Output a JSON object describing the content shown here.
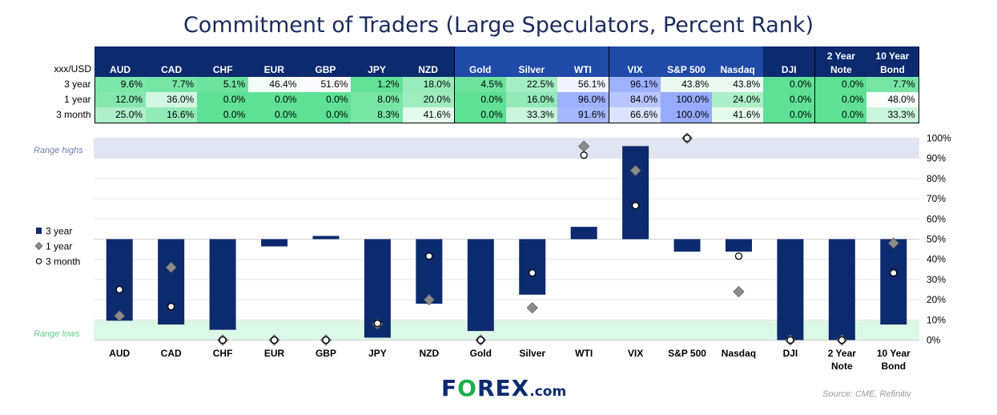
{
  "title": "Commitment of Traders (Large Speculators, Percent Rank)",
  "table": {
    "corner_label": "xxx/USD",
    "columns": [
      "AUD",
      "CAD",
      "CHF",
      "EUR",
      "GBP",
      "JPY",
      "NZD",
      "Gold",
      "Silver",
      "WTI",
      "VIX",
      "S&P 500",
      "Nasdaq",
      "DJI",
      "2 Year Note",
      "10 Year Bond"
    ],
    "rows": [
      {
        "label": "3 year",
        "values": [
          "9.6%",
          "7.7%",
          "5.1%",
          "46.4%",
          "51.6%",
          "1.2%",
          "18.0%",
          "4.5%",
          "22.5%",
          "56.1%",
          "96.1%",
          "43.8%",
          "43.8%",
          "0.0%",
          "0.0%",
          "7.7%"
        ]
      },
      {
        "label": "1 year",
        "values": [
          "12.0%",
          "36.0%",
          "0.0%",
          "0.0%",
          "0.0%",
          "8.0%",
          "20.0%",
          "0.0%",
          "16.0%",
          "96.0%",
          "84.0%",
          "100.0%",
          "24.0%",
          "0.0%",
          "0.0%",
          "48.0%"
        ]
      },
      {
        "label": "3 month",
        "values": [
          "25.0%",
          "16.6%",
          "0.0%",
          "0.0%",
          "0.0%",
          "8.3%",
          "41.6%",
          "0.0%",
          "33.3%",
          "91.6%",
          "66.6%",
          "100.0%",
          "41.6%",
          "0.0%",
          "0.0%",
          "33.3%"
        ]
      }
    ]
  },
  "chart_data": {
    "type": "bar",
    "categories": [
      "AUD",
      "CAD",
      "CHF",
      "EUR",
      "GBP",
      "JPY",
      "NZD",
      "Gold",
      "Silver",
      "WTI",
      "VIX",
      "S&P 500",
      "Nasdaq",
      "DJI",
      "2 Year Note",
      "10 Year Bond"
    ],
    "baseline": 50,
    "series": [
      {
        "name": "3 year",
        "style": "bar",
        "color": "#0c2a6e",
        "values": [
          9.6,
          7.7,
          5.1,
          46.4,
          51.6,
          1.2,
          18.0,
          4.5,
          22.5,
          56.1,
          96.1,
          43.8,
          43.8,
          0.0,
          0.0,
          7.7
        ]
      },
      {
        "name": "1 year",
        "style": "diamond",
        "color": "#8c8c8c",
        "values": [
          12.0,
          36.0,
          0.0,
          0.0,
          0.0,
          8.0,
          20.0,
          0.0,
          16.0,
          96.0,
          84.0,
          100.0,
          24.0,
          0.0,
          0.0,
          48.0
        ]
      },
      {
        "name": "3 month",
        "style": "circle",
        "color": "#ffffff",
        "values": [
          25.0,
          16.6,
          0.0,
          0.0,
          0.0,
          8.3,
          41.6,
          0.0,
          33.3,
          91.6,
          66.6,
          100.0,
          41.6,
          0.0,
          0.0,
          33.3
        ]
      }
    ],
    "ylim": [
      0,
      100
    ],
    "yticks": [
      "0%",
      "10%",
      "20%",
      "30%",
      "40%",
      "50%",
      "60%",
      "70%",
      "80%",
      "90%",
      "100%"
    ],
    "bands": [
      {
        "label": "Range highs",
        "from": 90,
        "to": 100,
        "color": "#dfe5f1",
        "text_color": "#6d7fae"
      },
      {
        "label": "Range lows",
        "from": 0,
        "to": 10,
        "color": "#dcf8e6",
        "text_color": "#5fd08a"
      }
    ],
    "legend_position": "left",
    "grid": true
  },
  "logo": {
    "fx": "F",
    "o": "O",
    "rex": "REX",
    "com": ".com"
  },
  "source": "Source: CME, Refinitiv"
}
